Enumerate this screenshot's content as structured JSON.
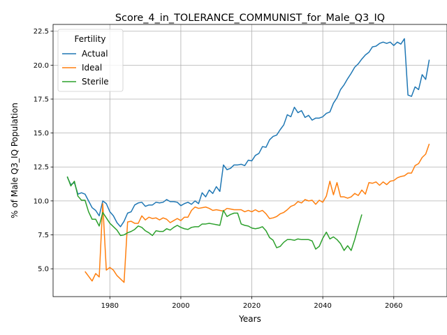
{
  "chart_data": {
    "type": "line",
    "title": "Score_4_in_TOLERANCE_COMMUNIST_for_Male_Q3_IQ",
    "xlabel": "Years",
    "ylabel": "% of Male Q3_IQ Population",
    "xlim": [
      1964,
      2075
    ],
    "ylim": [
      2.95,
      23.0
    ],
    "xticks": [
      1980,
      2000,
      2020,
      2040,
      2060
    ],
    "yticks": [
      5.0,
      7.5,
      10.0,
      12.5,
      15.0,
      17.5,
      20.0,
      22.5
    ],
    "xtick_labels": [
      "1980",
      "2000",
      "2020",
      "2040",
      "2060"
    ],
    "ytick_labels": [
      "5.0",
      "7.5",
      "10.0",
      "12.5",
      "15.0",
      "17.5",
      "20.0",
      "22.5"
    ],
    "grid": true,
    "legend": {
      "title": "Fertility",
      "placement": "top-left"
    },
    "series": [
      {
        "name": "Actual",
        "color": "#1f77b4",
        "points": [
          [
            1968,
            11.75
          ],
          [
            1969,
            11.2
          ],
          [
            1970,
            11.35
          ],
          [
            1971,
            10.5
          ],
          [
            1972,
            10.6
          ],
          [
            1973,
            10.5
          ],
          [
            1974,
            10.0
          ],
          [
            1975,
            9.5
          ],
          [
            1976,
            9.3
          ],
          [
            1977,
            8.9
          ],
          [
            1978,
            10.0
          ],
          [
            1979,
            9.8
          ],
          [
            1980,
            9.2
          ],
          [
            1981,
            8.9
          ],
          [
            1982,
            8.4
          ],
          [
            1983,
            8.1
          ],
          [
            1984,
            8.5
          ],
          [
            1985,
            9.1
          ],
          [
            1986,
            9.2
          ],
          [
            1987,
            9.7
          ],
          [
            1988,
            9.85
          ],
          [
            1989,
            9.9
          ],
          [
            1990,
            9.6
          ],
          [
            1991,
            9.7
          ],
          [
            1992,
            9.7
          ],
          [
            1993,
            9.9
          ],
          [
            1994,
            9.85
          ],
          [
            1995,
            9.9
          ],
          [
            1996,
            10.1
          ],
          [
            1997,
            9.95
          ],
          [
            1998,
            9.95
          ],
          [
            1999,
            9.9
          ],
          [
            2000,
            9.65
          ],
          [
            2001,
            9.8
          ],
          [
            2002,
            9.9
          ],
          [
            2003,
            9.75
          ],
          [
            2004,
            10.0
          ],
          [
            2005,
            9.8
          ],
          [
            2006,
            10.6
          ],
          [
            2007,
            10.3
          ],
          [
            2008,
            10.8
          ],
          [
            2009,
            10.55
          ],
          [
            2010,
            11.05
          ],
          [
            2011,
            10.7
          ],
          [
            2012,
            12.65
          ],
          [
            2013,
            12.3
          ],
          [
            2014,
            12.4
          ],
          [
            2015,
            12.65
          ],
          [
            2016,
            12.65
          ],
          [
            2017,
            12.7
          ],
          [
            2018,
            12.6
          ],
          [
            2019,
            13.0
          ],
          [
            2020,
            12.95
          ],
          [
            2021,
            13.35
          ],
          [
            2022,
            13.5
          ],
          [
            2023,
            14.0
          ],
          [
            2024,
            13.95
          ],
          [
            2025,
            14.5
          ],
          [
            2026,
            14.75
          ],
          [
            2027,
            14.85
          ],
          [
            2028,
            15.25
          ],
          [
            2029,
            15.6
          ],
          [
            2030,
            16.35
          ],
          [
            2031,
            16.2
          ],
          [
            2032,
            16.9
          ],
          [
            2033,
            16.5
          ],
          [
            2034,
            16.65
          ],
          [
            2035,
            16.15
          ],
          [
            2036,
            16.3
          ],
          [
            2037,
            15.95
          ],
          [
            2038,
            16.1
          ],
          [
            2039,
            16.1
          ],
          [
            2040,
            16.2
          ],
          [
            2041,
            16.45
          ],
          [
            2042,
            16.55
          ],
          [
            2043,
            17.2
          ],
          [
            2044,
            17.6
          ],
          [
            2045,
            18.2
          ],
          [
            2046,
            18.55
          ],
          [
            2047,
            19.0
          ],
          [
            2048,
            19.4
          ],
          [
            2049,
            19.85
          ],
          [
            2050,
            20.1
          ],
          [
            2051,
            20.45
          ],
          [
            2052,
            20.75
          ],
          [
            2053,
            20.95
          ],
          [
            2054,
            21.35
          ],
          [
            2055,
            21.4
          ],
          [
            2056,
            21.6
          ],
          [
            2057,
            21.7
          ],
          [
            2058,
            21.6
          ],
          [
            2059,
            21.7
          ],
          [
            2060,
            21.45
          ],
          [
            2061,
            21.7
          ],
          [
            2062,
            21.55
          ],
          [
            2063,
            21.95
          ],
          [
            2064,
            17.8
          ],
          [
            2065,
            17.7
          ],
          [
            2066,
            18.4
          ],
          [
            2067,
            18.2
          ],
          [
            2068,
            19.3
          ],
          [
            2069,
            18.95
          ],
          [
            2070,
            20.4
          ]
        ]
      },
      {
        "name": "Ideal",
        "color": "#ff7f0e",
        "points": [
          [
            1973,
            4.8
          ],
          [
            1974,
            4.45
          ],
          [
            1975,
            4.1
          ],
          [
            1976,
            4.65
          ],
          [
            1977,
            4.4
          ],
          [
            1978,
            9.8
          ],
          [
            1979,
            4.9
          ],
          [
            1980,
            5.1
          ],
          [
            1981,
            4.9
          ],
          [
            1982,
            4.5
          ],
          [
            1983,
            4.25
          ],
          [
            1984,
            4.0
          ],
          [
            1985,
            8.45
          ],
          [
            1986,
            8.5
          ],
          [
            1987,
            8.35
          ],
          [
            1988,
            8.35
          ],
          [
            1989,
            8.9
          ],
          [
            1990,
            8.6
          ],
          [
            1991,
            8.8
          ],
          [
            1992,
            8.7
          ],
          [
            1993,
            8.75
          ],
          [
            1994,
            8.6
          ],
          [
            1995,
            8.75
          ],
          [
            1996,
            8.65
          ],
          [
            1997,
            8.4
          ],
          [
            1998,
            8.55
          ],
          [
            1999,
            8.7
          ],
          [
            2000,
            8.55
          ],
          [
            2001,
            8.8
          ],
          [
            2002,
            8.8
          ],
          [
            2003,
            9.3
          ],
          [
            2004,
            9.55
          ],
          [
            2005,
            9.45
          ],
          [
            2006,
            9.5
          ],
          [
            2007,
            9.55
          ],
          [
            2008,
            9.45
          ],
          [
            2009,
            9.3
          ],
          [
            2010,
            9.35
          ],
          [
            2011,
            9.3
          ],
          [
            2012,
            9.25
          ],
          [
            2013,
            9.45
          ],
          [
            2014,
            9.4
          ],
          [
            2015,
            9.35
          ],
          [
            2016,
            9.35
          ],
          [
            2017,
            9.35
          ],
          [
            2018,
            9.2
          ],
          [
            2019,
            9.3
          ],
          [
            2020,
            9.2
          ],
          [
            2021,
            9.35
          ],
          [
            2022,
            9.2
          ],
          [
            2023,
            9.3
          ],
          [
            2024,
            9.05
          ],
          [
            2025,
            8.7
          ],
          [
            2026,
            8.75
          ],
          [
            2027,
            8.85
          ],
          [
            2028,
            9.05
          ],
          [
            2029,
            9.15
          ],
          [
            2030,
            9.35
          ],
          [
            2031,
            9.6
          ],
          [
            2032,
            9.7
          ],
          [
            2033,
            9.95
          ],
          [
            2034,
            9.85
          ],
          [
            2035,
            10.1
          ],
          [
            2036,
            10.0
          ],
          [
            2037,
            10.05
          ],
          [
            2038,
            9.75
          ],
          [
            2039,
            10.05
          ],
          [
            2040,
            9.9
          ],
          [
            2041,
            10.35
          ],
          [
            2042,
            11.45
          ],
          [
            2043,
            10.45
          ],
          [
            2044,
            11.35
          ],
          [
            2045,
            10.3
          ],
          [
            2046,
            10.3
          ],
          [
            2047,
            10.2
          ],
          [
            2048,
            10.3
          ],
          [
            2049,
            10.55
          ],
          [
            2050,
            10.4
          ],
          [
            2051,
            10.8
          ],
          [
            2052,
            10.5
          ],
          [
            2053,
            11.35
          ],
          [
            2054,
            11.3
          ],
          [
            2055,
            11.4
          ],
          [
            2056,
            11.15
          ],
          [
            2057,
            11.4
          ],
          [
            2058,
            11.2
          ],
          [
            2059,
            11.45
          ],
          [
            2060,
            11.5
          ],
          [
            2061,
            11.7
          ],
          [
            2062,
            11.8
          ],
          [
            2063,
            11.85
          ],
          [
            2064,
            12.05
          ],
          [
            2065,
            12.05
          ],
          [
            2066,
            12.6
          ],
          [
            2067,
            12.75
          ],
          [
            2068,
            13.2
          ],
          [
            2069,
            13.45
          ],
          [
            2070,
            14.2
          ]
        ]
      },
      {
        "name": "Sterile",
        "color": "#2ca02c",
        "points": [
          [
            1968,
            11.8
          ],
          [
            1969,
            11.1
          ],
          [
            1970,
            11.45
          ],
          [
            1971,
            10.35
          ],
          [
            1972,
            10.05
          ],
          [
            1973,
            10.05
          ],
          [
            1974,
            9.2
          ],
          [
            1975,
            8.65
          ],
          [
            1976,
            8.65
          ],
          [
            1977,
            8.15
          ],
          [
            1978,
            9.15
          ],
          [
            1979,
            8.75
          ],
          [
            1980,
            8.35
          ],
          [
            1981,
            8.1
          ],
          [
            1982,
            7.85
          ],
          [
            1983,
            7.45
          ],
          [
            1984,
            7.5
          ],
          [
            1985,
            7.65
          ],
          [
            1986,
            7.75
          ],
          [
            1987,
            7.9
          ],
          [
            1988,
            8.15
          ],
          [
            1989,
            8.05
          ],
          [
            1990,
            7.8
          ],
          [
            1991,
            7.65
          ],
          [
            1992,
            7.45
          ],
          [
            1993,
            7.8
          ],
          [
            1994,
            7.75
          ],
          [
            1995,
            7.75
          ],
          [
            1996,
            7.95
          ],
          [
            1997,
            7.85
          ],
          [
            1998,
            8.05
          ],
          [
            1999,
            8.2
          ],
          [
            2000,
            8.05
          ],
          [
            2001,
            7.95
          ],
          [
            2002,
            7.9
          ],
          [
            2003,
            8.05
          ],
          [
            2004,
            8.1
          ],
          [
            2005,
            8.1
          ],
          [
            2006,
            8.3
          ],
          [
            2007,
            8.3
          ],
          [
            2008,
            8.35
          ],
          [
            2009,
            8.3
          ],
          [
            2010,
            8.25
          ],
          [
            2011,
            8.2
          ],
          [
            2012,
            9.3
          ],
          [
            2013,
            8.85
          ],
          [
            2014,
            9.0
          ],
          [
            2015,
            9.1
          ],
          [
            2016,
            9.1
          ],
          [
            2017,
            8.3
          ],
          [
            2018,
            8.2
          ],
          [
            2019,
            8.15
          ],
          [
            2020,
            8.0
          ],
          [
            2021,
            7.95
          ],
          [
            2022,
            8.0
          ],
          [
            2023,
            8.1
          ],
          [
            2024,
            7.8
          ],
          [
            2025,
            7.3
          ],
          [
            2026,
            7.1
          ],
          [
            2027,
            6.55
          ],
          [
            2028,
            6.65
          ],
          [
            2029,
            6.95
          ],
          [
            2030,
            7.15
          ],
          [
            2031,
            7.15
          ],
          [
            2032,
            7.1
          ],
          [
            2033,
            7.2
          ],
          [
            2034,
            7.15
          ],
          [
            2035,
            7.15
          ],
          [
            2036,
            7.15
          ],
          [
            2037,
            7.05
          ],
          [
            2038,
            6.45
          ],
          [
            2039,
            6.65
          ],
          [
            2040,
            7.25
          ],
          [
            2041,
            7.7
          ],
          [
            2042,
            7.2
          ],
          [
            2043,
            7.35
          ],
          [
            2044,
            7.15
          ],
          [
            2045,
            6.85
          ],
          [
            2046,
            6.35
          ],
          [
            2047,
            6.7
          ],
          [
            2048,
            6.35
          ],
          [
            2049,
            7.15
          ],
          [
            2050,
            8.1
          ],
          [
            2051,
            9.0
          ]
        ]
      }
    ]
  }
}
